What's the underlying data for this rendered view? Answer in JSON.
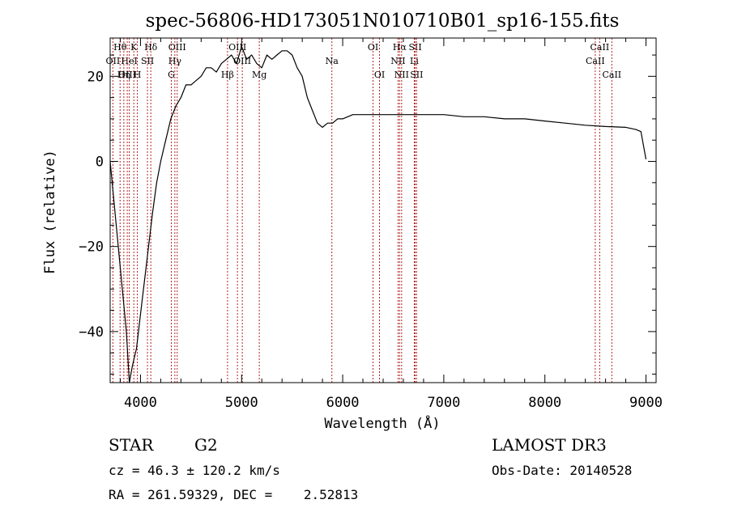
{
  "chart_data": {
    "type": "line",
    "title": "spec-56806-HD173051N010710B01_sp16-155.fits",
    "xlabel": "Wavelength (Å)",
    "ylabel": "Flux (relative)",
    "xlim": [
      3700,
      9100
    ],
    "ylim": [
      -52,
      29
    ],
    "xticks": [
      4000,
      5000,
      6000,
      7000,
      8000,
      9000
    ],
    "xtick_labels": [
      "4000",
      "5000",
      "6000",
      "7000",
      "8000",
      "9000"
    ],
    "yticks": [
      -40,
      -20,
      0,
      20
    ],
    "ytick_labels": [
      "−40",
      "−20",
      "0",
      "20"
    ],
    "grid": false,
    "legend": "none",
    "line_color": "#000000",
    "marker_color": "#b22222",
    "series": [
      {
        "x": [
          3700,
          3760,
          3820,
          3860,
          3890,
          3920,
          3960,
          4000,
          4040,
          4080,
          4120,
          4160,
          4200,
          4250,
          4300,
          4350,
          4400,
          4450,
          4500,
          4550,
          4600,
          4650,
          4700,
          4750,
          4800,
          4850,
          4900,
          4950,
          5000,
          5050,
          5100,
          5150,
          5200,
          5250,
          5300,
          5350,
          5400,
          5450,
          5500,
          5550,
          5600,
          5650,
          5700,
          5750,
          5800,
          5850,
          5900,
          5950,
          6000,
          6100,
          6200,
          6300,
          6400,
          6500,
          6600,
          6700,
          6800,
          6900,
          7000,
          7200,
          7400,
          7600,
          7800,
          8000,
          8200,
          8400,
          8600,
          8800,
          8900,
          8950,
          9000
        ],
        "y": [
          0,
          -15,
          -30,
          -40,
          -52,
          -48,
          -44,
          -36,
          -28,
          -20,
          -12,
          -5,
          0,
          5,
          10,
          13,
          15,
          18,
          18,
          19,
          20,
          22,
          22,
          21,
          23,
          24,
          25,
          23,
          27,
          24,
          25,
          23,
          22,
          25,
          24,
          25,
          26,
          26,
          25,
          22,
          20,
          15,
          12,
          9,
          8,
          9,
          9,
          10,
          10,
          11,
          11,
          11,
          11,
          11,
          11,
          11,
          11,
          11,
          11,
          10.5,
          10.5,
          10,
          10,
          9.5,
          9,
          8.5,
          8.2,
          8,
          7.5,
          7,
          0.5
        ]
      }
    ],
    "line_markers": [
      {
        "name": "Hθ",
        "x": 3798,
        "row": 1
      },
      {
        "name": "K",
        "x": 3934,
        "row": 1
      },
      {
        "name": "Hδ",
        "x": 4102,
        "row": 1
      },
      {
        "name": "OII",
        "x": 3727,
        "row": 2
      },
      {
        "name": "HeI",
        "x": 3889,
        "row": 2
      },
      {
        "name": "SII",
        "x": 4069,
        "row": 2
      },
      {
        "name": "OIII",
        "x": 3869,
        "row": 3
      },
      {
        "name": "Hη",
        "x": 3835,
        "row": 3
      },
      {
        "name": "H",
        "x": 3969,
        "row": 3
      },
      {
        "name": "OIII",
        "x": 4363,
        "row": 1
      },
      {
        "name": "Hγ",
        "x": 4340,
        "row": 2
      },
      {
        "name": "G",
        "x": 4305,
        "row": 3
      },
      {
        "name": "OIII",
        "x": 4959,
        "row": 1
      },
      {
        "name": "OIII",
        "x": 5007,
        "row": 2
      },
      {
        "name": "Hβ",
        "x": 4861,
        "row": 3
      },
      {
        "name": "Mg",
        "x": 5175,
        "row": 3
      },
      {
        "name": "Na",
        "x": 5893,
        "row": 2
      },
      {
        "name": "OI",
        "x": 6300,
        "row": 1
      },
      {
        "name": "OI",
        "x": 6364,
        "row": 3
      },
      {
        "name": "Hα",
        "x": 6563,
        "row": 1
      },
      {
        "name": "SII",
        "x": 6717,
        "row": 1
      },
      {
        "name": "NII",
        "x": 6548,
        "row": 2
      },
      {
        "name": "Li",
        "x": 6708,
        "row": 2
      },
      {
        "name": "NII",
        "x": 6583,
        "row": 3
      },
      {
        "name": "SII",
        "x": 6731,
        "row": 3
      },
      {
        "name": "CaII",
        "x": 8542,
        "row": 1
      },
      {
        "name": "CaII",
        "x": 8498,
        "row": 2
      },
      {
        "name": "CaII",
        "x": 8662,
        "row": 3
      }
    ]
  },
  "info": {
    "object_type": "STAR",
    "subclass": "G2",
    "redshift_line": "cz = 46.3 ± 120.2 km/s",
    "coords_line": "RA = 261.59329, DEC =    2.52813",
    "survey": "LAMOST DR3",
    "obs_date": "Obs-Date: 20140528"
  }
}
